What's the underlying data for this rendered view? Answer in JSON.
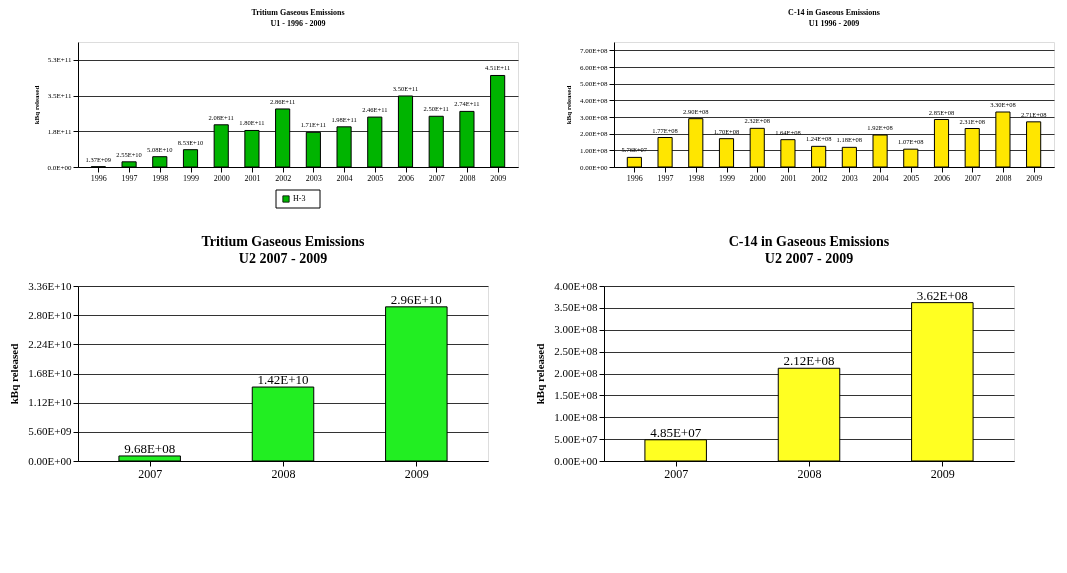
{
  "chart_data": [
    {
      "type": "bar",
      "title": "Tritium Gaseous Emissions",
      "subtitle": "U1 - 1996 - 2009",
      "ylabel": "kBq released",
      "categories": [
        "1996",
        "1997",
        "1998",
        "1999",
        "2000",
        "2001",
        "2002",
        "2003",
        "2004",
        "2005",
        "2006",
        "2007",
        "2008",
        "2009"
      ],
      "series": [
        {
          "name": "H-3",
          "color": "#00b400",
          "values": [
            1370000000.0,
            25500000000.0,
            50800000000.0,
            85300000000.0,
            208000000000.0,
            180000000000.0,
            286000000000.0,
            171000000000.0,
            198000000000.0,
            246000000000.0,
            350000000000.0,
            250000000000.0,
            274000000000.0,
            451000000000.0
          ],
          "value_labels": [
            "1.37E+09",
            "2.55E+10",
            "5.08E+10",
            "8.53E+10",
            "2.08E+11",
            "1.80E+11",
            "2.86E+11",
            "1.71E+11",
            "1.98E+11",
            "2.46E+11",
            "3.50E+11",
            "2.50E+11",
            "2.74E+11",
            "4.51E+11"
          ]
        }
      ],
      "ylim": [
        0,
        616000000000.0
      ],
      "yticks": [
        {
          "value": 0,
          "label": "0.0E+00"
        },
        {
          "value": 176000000000.0,
          "label": "1.8E+11"
        },
        {
          "value": 352000000000.0,
          "label": "3.5E+11"
        },
        {
          "value": 528000000000.0,
          "label": "5.3E+11"
        }
      ],
      "grid": "y",
      "legend": "bottom"
    },
    {
      "type": "bar",
      "title": "C-14  in Gaseous Emissions",
      "subtitle": "U1 1996 - 2009",
      "ylabel": "kBq released",
      "categories": [
        "1996",
        "1997",
        "1998",
        "1999",
        "2000",
        "2001",
        "2002",
        "2003",
        "2004",
        "2005",
        "2006",
        "2007",
        "2008",
        "2009"
      ],
      "series": [
        {
          "color": "#ffe600",
          "values": [
            57600000.0,
            177000000.0,
            290000000.0,
            170000000.0,
            232000000.0,
            164000000.0,
            124000000.0,
            118000000.0,
            192000000.0,
            107000000.0,
            285000000.0,
            231000000.0,
            330000000.0,
            271000000.0
          ],
          "value_labels": [
            "5.76E+07",
            "1.77E+08",
            "2.90E+08",
            "1.70E+08",
            "2.32E+08",
            "1.64E+08",
            "1.24E+08",
            "1.18E+08",
            "1.92E+08",
            "1.07E+08",
            "2.85E+08",
            "2.31E+08",
            "3.30E+08",
            "2.71E+08"
          ]
        }
      ],
      "ylim": [
        0,
        750000000.0
      ],
      "yticks": [
        {
          "value": 0,
          "label": "0.00E+00"
        },
        {
          "value": 100000000.0,
          "label": "1.00E+08"
        },
        {
          "value": 200000000.0,
          "label": "2.00E+08"
        },
        {
          "value": 300000000.0,
          "label": "3.00E+08"
        },
        {
          "value": 400000000.0,
          "label": "4.00E+08"
        },
        {
          "value": 500000000.0,
          "label": "5.00E+08"
        },
        {
          "value": 600000000.0,
          "label": "6.00E+08"
        },
        {
          "value": 700000000.0,
          "label": "7.00E+08"
        }
      ],
      "grid": "y"
    },
    {
      "type": "bar",
      "title": "Tritium Gaseous Emissions",
      "subtitle": "U2 2007 - 2009",
      "ylabel": "kBq released",
      "categories": [
        "2007",
        "2008",
        "2009"
      ],
      "series": [
        {
          "color": "#22ee22",
          "values": [
            968000000.0,
            14200000000.0,
            29600000000.0
          ],
          "value_labels": [
            "9.68E+08",
            "1.42E+10",
            "2.96E+10"
          ]
        }
      ],
      "ylim": [
        0,
        33600000000.0
      ],
      "yticks": [
        {
          "value": 0,
          "label": "0.00E+00"
        },
        {
          "value": 5600000000.0,
          "label": "5.60E+09"
        },
        {
          "value": 11200000000.0,
          "label": "1.12E+10"
        },
        {
          "value": 16800000000.0,
          "label": "1.68E+10"
        },
        {
          "value": 22400000000.0,
          "label": "2.24E+10"
        },
        {
          "value": 28000000000.0,
          "label": "2.80E+10"
        },
        {
          "value": 33600000000.0,
          "label": "3.36E+10"
        }
      ],
      "grid": "y"
    },
    {
      "type": "bar",
      "title": "C-14  in Gaseous Emissions",
      "subtitle": "U2 2007 - 2009",
      "ylabel": "kBq released",
      "categories": [
        "2007",
        "2008",
        "2009"
      ],
      "series": [
        {
          "color": "#ffff22",
          "values": [
            48500000.0,
            212000000.0,
            362000000.0
          ],
          "value_labels": [
            "4.85E+07",
            "2.12E+08",
            "3.62E+08"
          ]
        }
      ],
      "ylim": [
        0,
        400000000.0
      ],
      "yticks": [
        {
          "value": 0,
          "label": "0.00E+00"
        },
        {
          "value": 50000000.0,
          "label": "5.00E+07"
        },
        {
          "value": 100000000.0,
          "label": "1.00E+08"
        },
        {
          "value": 150000000.0,
          "label": "1.50E+08"
        },
        {
          "value": 200000000.0,
          "label": "2.00E+08"
        },
        {
          "value": 250000000.0,
          "label": "2.50E+08"
        },
        {
          "value": 300000000.0,
          "label": "3.00E+08"
        },
        {
          "value": 350000000.0,
          "label": "3.50E+08"
        },
        {
          "value": 400000000.0,
          "label": "4.00E+08"
        }
      ],
      "grid": "y"
    }
  ]
}
